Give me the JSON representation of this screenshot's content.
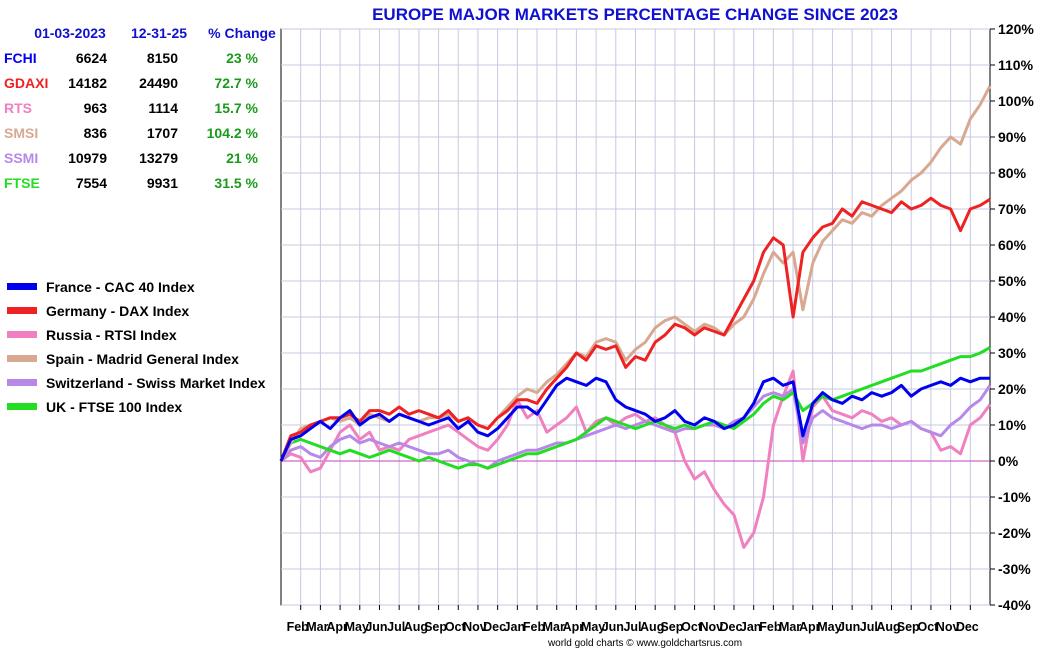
{
  "chart_data": {
    "type": "line",
    "title": "EUROPE MAJOR MARKETS PERCENTAGE CHANGE SINCE 2023",
    "credit": "world gold charts © www.goldchartsrus.com",
    "ylim": [
      -40,
      120
    ],
    "y_ticks": [
      120,
      110,
      100,
      90,
      80,
      70,
      60,
      50,
      40,
      30,
      20,
      10,
      0,
      -10,
      -20,
      -30,
      -40
    ],
    "y_tick_labels": [
      "120%",
      "110%",
      "100%",
      "90%",
      "80%",
      "70%",
      "60%",
      "50%",
      "40%",
      "30%",
      "20%",
      "10%",
      "0%",
      "-10%",
      "-20%",
      "-30%",
      "-40%"
    ],
    "xlim": [
      0,
      36
    ],
    "x_tick_labels": [
      "Feb",
      "Mar",
      "Apr",
      "May",
      "Jun",
      "Jul",
      "Aug",
      "Sep",
      "Oct",
      "Nov",
      "Dec",
      "Jan",
      "Feb",
      "Mar",
      "Apr",
      "May",
      "Jun",
      "Jul",
      "Aug",
      "Sep",
      "Oct",
      "Nov",
      "Dec",
      "Jan",
      "Feb",
      "Mar",
      "Apr",
      "May",
      "Jun",
      "Jul",
      "Aug",
      "Sep",
      "Oct",
      "Nov",
      "Dec"
    ],
    "zero_line_color": "#c040c0",
    "table_headers": [
      "01-03-2023",
      "12-31-25",
      "% Change"
    ],
    "series": [
      {
        "symbol": "FCHI",
        "name": "France - CAC 40 Index",
        "color": "#0000ee",
        "start": "6624",
        "end": "8150",
        "change": "23 %",
        "x": [
          0,
          0.5,
          1,
          1.5,
          2,
          2.5,
          3,
          3.5,
          4,
          4.5,
          5,
          5.5,
          6,
          6.5,
          7,
          7.5,
          8,
          8.5,
          9,
          9.5,
          10,
          10.5,
          11,
          11.5,
          12,
          12.5,
          13,
          13.5,
          14,
          14.5,
          15,
          15.5,
          16,
          16.5,
          17,
          17.5,
          18,
          18.5,
          19,
          19.5,
          20,
          20.5,
          21,
          21.5,
          22,
          22.5,
          23,
          23.5,
          24,
          24.5,
          25,
          25.5,
          26,
          26.5,
          27,
          27.5,
          28,
          28.5,
          29,
          29.5,
          30,
          30.5,
          31,
          31.5,
          32,
          32.5,
          33,
          33.5,
          34,
          34.5,
          35,
          35.5,
          36
        ],
        "values": [
          0,
          6,
          7,
          9,
          11,
          9,
          12,
          14,
          10,
          12,
          13,
          11,
          13,
          12,
          11,
          10,
          11,
          12,
          9,
          11,
          8,
          7,
          9,
          12,
          15,
          15,
          13,
          17,
          21,
          23,
          22,
          21,
          23,
          22,
          17,
          15,
          14,
          13,
          11,
          12,
          14,
          11,
          10,
          12,
          11,
          9,
          10,
          12,
          16,
          22,
          23,
          21,
          22,
          7,
          16,
          19,
          17,
          16,
          18,
          17,
          19,
          18,
          19,
          21,
          18,
          20,
          21,
          22,
          21,
          23,
          22,
          23,
          23
        ]
      },
      {
        "symbol": "GDAXI",
        "name": "Germany - DAX Index",
        "color": "#ee2222",
        "start": "14182",
        "end": "24490",
        "change": "72.7 %",
        "x": [
          0,
          0.5,
          1,
          1.5,
          2,
          2.5,
          3,
          3.5,
          4,
          4.5,
          5,
          5.5,
          6,
          6.5,
          7,
          7.5,
          8,
          8.5,
          9,
          9.5,
          10,
          10.5,
          11,
          11.5,
          12,
          12.5,
          13,
          13.5,
          14,
          14.5,
          15,
          15.5,
          16,
          16.5,
          17,
          17.5,
          18,
          18.5,
          19,
          19.5,
          20,
          20.5,
          21,
          21.5,
          22,
          22.5,
          23,
          23.5,
          24,
          24.5,
          25,
          25.5,
          26,
          26.5,
          27,
          27.5,
          28,
          28.5,
          29,
          29.5,
          30,
          30.5,
          31,
          31.5,
          32,
          32.5,
          33,
          33.5,
          34,
          34.5,
          35,
          35.5,
          36
        ],
        "values": [
          0,
          7,
          8,
          10,
          11,
          12,
          12,
          13,
          11,
          14,
          14,
          13,
          15,
          13,
          14,
          13,
          12,
          14,
          11,
          12,
          10,
          9,
          12,
          14,
          17,
          17,
          16,
          20,
          23,
          26,
          30,
          28,
          32,
          31,
          32,
          26,
          29,
          28,
          33,
          35,
          38,
          37,
          35,
          37,
          36,
          35,
          40,
          45,
          50,
          58,
          62,
          60,
          40,
          58,
          62,
          65,
          66,
          70,
          68,
          72,
          71,
          70,
          69,
          72,
          70,
          71,
          73,
          71,
          70,
          64,
          70,
          71,
          72.7
        ]
      },
      {
        "symbol": "RTS",
        "name": "Russia - RTSI Index",
        "color": "#f080c0",
        "start": "963",
        "end": "1114",
        "change": "15.7 %",
        "x": [
          0,
          0.5,
          1,
          1.5,
          2,
          2.5,
          3,
          3.5,
          4,
          4.5,
          5,
          5.5,
          6,
          6.5,
          7,
          7.5,
          8,
          8.5,
          9,
          9.5,
          10,
          10.5,
          11,
          11.5,
          12,
          12.5,
          13,
          13.5,
          14,
          14.5,
          15,
          15.5,
          16,
          16.5,
          17,
          17.5,
          18,
          18.5,
          19,
          19.5,
          20,
          20.5,
          21,
          21.5,
          22,
          22.5,
          23,
          23.5,
          24,
          24.5,
          25,
          25.5,
          26,
          26.5,
          27,
          27.5,
          28,
          28.5,
          29,
          29.5,
          30,
          30.5,
          31,
          31.5,
          32,
          32.5,
          33,
          33.5,
          34,
          34.5,
          35,
          35.5,
          36
        ],
        "values": [
          0,
          2,
          1,
          -3,
          -2,
          3,
          8,
          10,
          6,
          8,
          3,
          4,
          3,
          6,
          7,
          8,
          9,
          10,
          8,
          6,
          4,
          3,
          6,
          10,
          17,
          12,
          14,
          8,
          10,
          12,
          15,
          8,
          11,
          12,
          10,
          12,
          13,
          11,
          12,
          10,
          8,
          0,
          -5,
          -3,
          -8,
          -12,
          -15,
          -24,
          -20,
          -10,
          10,
          18,
          25,
          0,
          15,
          18,
          14,
          13,
          12,
          14,
          13,
          11,
          12,
          10,
          11,
          9,
          8,
          3,
          4,
          2,
          10,
          12,
          15.7
        ]
      },
      {
        "symbol": "SMSI",
        "name": "Spain - Madrid General Index",
        "color": "#d8a890",
        "start": "836",
        "end": "1707",
        "change": "104.2 %",
        "x": [
          0,
          0.5,
          1,
          1.5,
          2,
          2.5,
          3,
          3.5,
          4,
          4.5,
          5,
          5.5,
          6,
          6.5,
          7,
          7.5,
          8,
          8.5,
          9,
          9.5,
          10,
          10.5,
          11,
          11.5,
          12,
          12.5,
          13,
          13.5,
          14,
          14.5,
          15,
          15.5,
          16,
          16.5,
          17,
          17.5,
          18,
          18.5,
          19,
          19.5,
          20,
          20.5,
          21,
          21.5,
          22,
          22.5,
          23,
          23.5,
          24,
          24.5,
          25,
          25.5,
          26,
          26.5,
          27,
          27.5,
          28,
          28.5,
          29,
          29.5,
          30,
          30.5,
          31,
          31.5,
          32,
          32.5,
          33,
          33.5,
          34,
          34.5,
          35,
          35.5,
          36
        ],
        "values": [
          0,
          5,
          9,
          10,
          11,
          12,
          11,
          12,
          10,
          13,
          12,
          11,
          13,
          12,
          11,
          12,
          12,
          13,
          11,
          12,
          10,
          9,
          12,
          15,
          18,
          20,
          19,
          22,
          24,
          27,
          30,
          29,
          33,
          34,
          33,
          28,
          31,
          33,
          37,
          39,
          40,
          38,
          36,
          38,
          37,
          35,
          38,
          40,
          45,
          52,
          58,
          55,
          58,
          42,
          55,
          61,
          64,
          67,
          66,
          69,
          68,
          71,
          73,
          75,
          78,
          80,
          83,
          87,
          90,
          88,
          95,
          99,
          104.2
        ]
      },
      {
        "symbol": "SSMI",
        "name": "Switzerland - Swiss Market Index",
        "color": "#b888e8",
        "start": "10979",
        "end": "13279",
        "change": "21 %",
        "x": [
          0,
          0.5,
          1,
          1.5,
          2,
          2.5,
          3,
          3.5,
          4,
          4.5,
          5,
          5.5,
          6,
          6.5,
          7,
          7.5,
          8,
          8.5,
          9,
          9.5,
          10,
          10.5,
          11,
          11.5,
          12,
          12.5,
          13,
          13.5,
          14,
          14.5,
          15,
          15.5,
          16,
          16.5,
          17,
          17.5,
          18,
          18.5,
          19,
          19.5,
          20,
          20.5,
          21,
          21.5,
          22,
          22.5,
          23,
          23.5,
          24,
          24.5,
          25,
          25.5,
          26,
          26.5,
          27,
          27.5,
          28,
          28.5,
          29,
          29.5,
          30,
          30.5,
          31,
          31.5,
          32,
          32.5,
          33,
          33.5,
          34,
          34.5,
          35,
          35.5,
          36
        ],
        "values": [
          0,
          3,
          4,
          2,
          1,
          4,
          6,
          7,
          5,
          6,
          5,
          4,
          5,
          4,
          3,
          2,
          2,
          3,
          1,
          0,
          -1,
          -2,
          0,
          1,
          2,
          3,
          3,
          4,
          5,
          5,
          6,
          7,
          8,
          9,
          10,
          9,
          10,
          11,
          10,
          9,
          8,
          9,
          9,
          10,
          10,
          9,
          11,
          12,
          15,
          18,
          19,
          18,
          20,
          5,
          12,
          14,
          12,
          11,
          10,
          9,
          10,
          10,
          9,
          10,
          11,
          9,
          8,
          7,
          10,
          12,
          15,
          17,
          21
        ]
      },
      {
        "symbol": "FTSE",
        "name": "UK - FTSE 100 Index",
        "color": "#22dd22",
        "start": "7554",
        "end": "9931",
        "change": "31.5 %",
        "x": [
          0,
          0.5,
          1,
          1.5,
          2,
          2.5,
          3,
          3.5,
          4,
          4.5,
          5,
          5.5,
          6,
          6.5,
          7,
          7.5,
          8,
          8.5,
          9,
          9.5,
          10,
          10.5,
          11,
          11.5,
          12,
          12.5,
          13,
          13.5,
          14,
          14.5,
          15,
          15.5,
          16,
          16.5,
          17,
          17.5,
          18,
          18.5,
          19,
          19.5,
          20,
          20.5,
          21,
          21.5,
          22,
          22.5,
          23,
          23.5,
          24,
          24.5,
          25,
          25.5,
          26,
          26.5,
          27,
          27.5,
          28,
          28.5,
          29,
          29.5,
          30,
          30.5,
          31,
          31.5,
          32,
          32.5,
          33,
          33.5,
          34,
          34.5,
          35,
          35.5,
          36
        ],
        "values": [
          0,
          5,
          6,
          5,
          4,
          3,
          2,
          3,
          2,
          1,
          2,
          3,
          2,
          1,
          0,
          1,
          0,
          -1,
          -2,
          -1,
          -1,
          -2,
          -1,
          0,
          1,
          2,
          2,
          3,
          4,
          5,
          6,
          8,
          10,
          12,
          11,
          10,
          9,
          10,
          11,
          10,
          9,
          10,
          9,
          10,
          11,
          10,
          9,
          11,
          13,
          16,
          18,
          17,
          19,
          14,
          16,
          18,
          17,
          18,
          19,
          20,
          21,
          22,
          23,
          24,
          25,
          25,
          26,
          27,
          28,
          29,
          29,
          30,
          31.5
        ]
      }
    ]
  }
}
